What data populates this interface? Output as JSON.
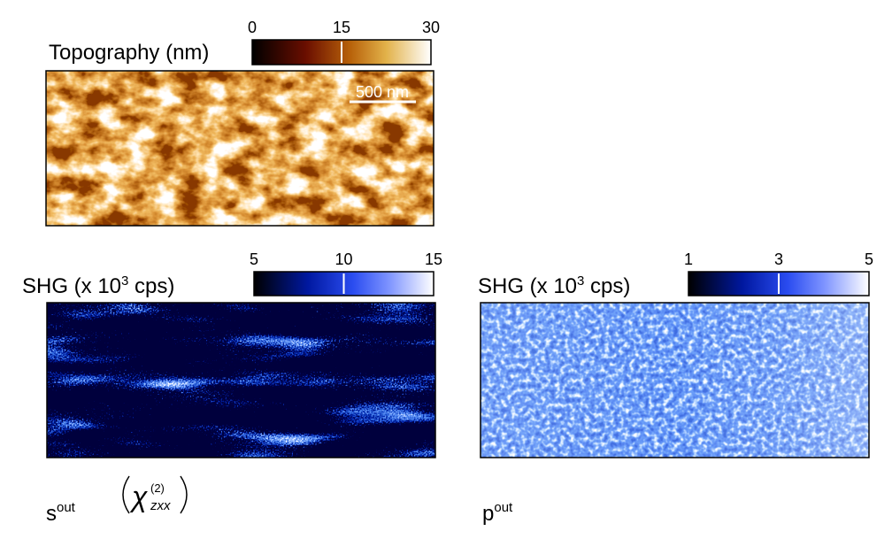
{
  "panels": [
    {
      "label": "Topography (nm)",
      "colorbar": {
        "range": [
          0,
          30
        ],
        "ticks": [
          0,
          15,
          30
        ]
      },
      "scale_bar": "500 nm"
    },
    {
      "label": {
        "text": "SHG (x 10",
        "sup": "3",
        "tail": " cps)"
      },
      "colorbar": {
        "range": [
          5,
          15
        ],
        "ticks": [
          5,
          10,
          15
        ]
      },
      "caption": {
        "base": "s",
        "sup": "out"
      },
      "tensor": {
        "symbol": "χ",
        "sup": "(2)",
        "sub": "zxx"
      }
    },
    {
      "label": {
        "text": "SHG (x 10",
        "sup": "3",
        "tail": " cps)"
      },
      "colorbar": {
        "range": [
          1,
          5
        ],
        "ticks": [
          1,
          3,
          5
        ]
      },
      "caption": {
        "base": "p",
        "sup": "out"
      }
    }
  ]
}
